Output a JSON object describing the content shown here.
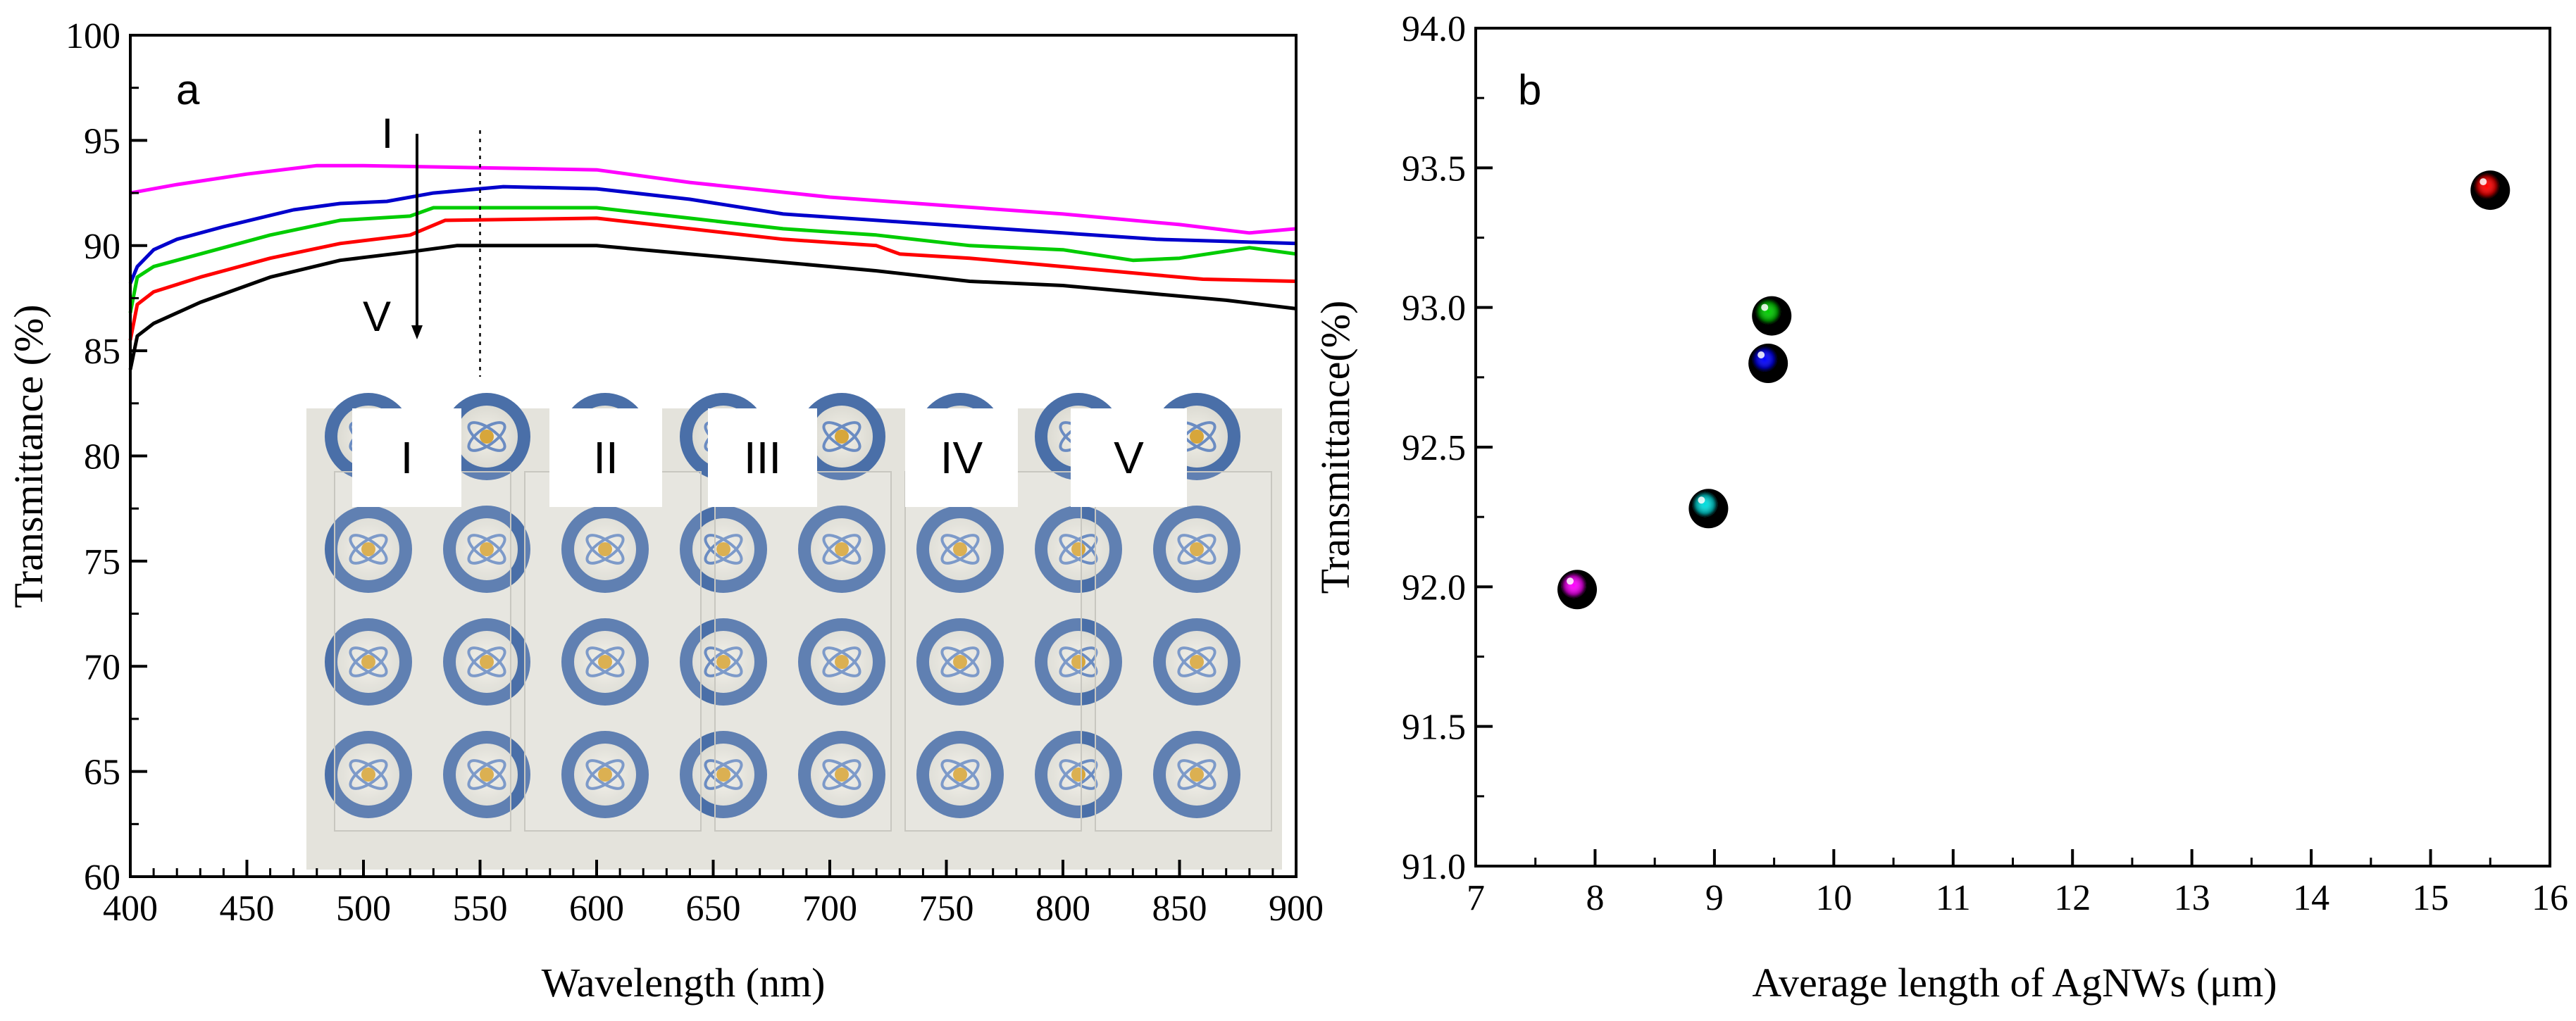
{
  "chart_data": [
    {
      "type": "line",
      "panel_label": "a",
      "xlabel": "Wavelength (nm)",
      "ylabel": "Transmittance (%)",
      "xlim": [
        400,
        900
      ],
      "ylim": [
        60,
        100
      ],
      "xticks": [
        "400",
        "450",
        "500",
        "550",
        "600",
        "650",
        "700",
        "750",
        "800",
        "850",
        "900"
      ],
      "yticks": [
        "60",
        "65",
        "70",
        "75",
        "80",
        "85",
        "90",
        "95",
        "100"
      ],
      "annotations": {
        "top": "I",
        "bottom": "V",
        "marker_wavelength": 550
      },
      "series": [
        {
          "name": "I",
          "color": "#ff00ff",
          "x": [
            400,
            420,
            450,
            480,
            500,
            550,
            600,
            640,
            700,
            750,
            800,
            850,
            880,
            900
          ],
          "values": [
            92.5,
            92.9,
            93.4,
            93.8,
            93.8,
            93.7,
            93.6,
            93.0,
            92.3,
            91.9,
            91.5,
            91.0,
            90.6,
            90.8
          ]
        },
        {
          "name": "II",
          "color": "#0000cc",
          "x": [
            400,
            403,
            410,
            420,
            440,
            470,
            490,
            510,
            530,
            560,
            600,
            640,
            680,
            720,
            760,
            800,
            840,
            870,
            900
          ],
          "values": [
            88.2,
            89.0,
            89.8,
            90.3,
            90.9,
            91.7,
            92.0,
            92.1,
            92.5,
            92.8,
            92.7,
            92.2,
            91.5,
            91.2,
            90.9,
            90.6,
            90.3,
            90.2,
            90.1
          ]
        },
        {
          "name": "III",
          "color": "#00cc00",
          "x": [
            400,
            403,
            410,
            430,
            460,
            490,
            520,
            530,
            600,
            640,
            680,
            720,
            760,
            800,
            830,
            850,
            880,
            900
          ],
          "values": [
            86.8,
            88.5,
            89.0,
            89.6,
            90.5,
            91.2,
            91.4,
            91.8,
            91.8,
            91.3,
            90.8,
            90.5,
            90.0,
            89.8,
            89.3,
            89.4,
            89.9,
            89.6
          ]
        },
        {
          "name": "IV",
          "color": "#ff0000",
          "x": [
            400,
            403,
            410,
            430,
            460,
            490,
            520,
            535,
            600,
            640,
            680,
            720,
            730,
            760,
            800,
            840,
            860,
            900
          ],
          "values": [
            85.5,
            87.2,
            87.8,
            88.5,
            89.4,
            90.1,
            90.5,
            91.2,
            91.3,
            90.8,
            90.3,
            90.0,
            89.6,
            89.4,
            89.0,
            88.6,
            88.4,
            88.3
          ]
        },
        {
          "name": "V",
          "color": "#000000",
          "x": [
            400,
            403,
            410,
            430,
            460,
            490,
            520,
            540,
            600,
            640,
            680,
            720,
            760,
            800,
            840,
            870,
            900
          ],
          "values": [
            84.1,
            85.7,
            86.3,
            87.3,
            88.5,
            89.3,
            89.7,
            90.0,
            90.0,
            89.6,
            89.2,
            88.8,
            88.3,
            88.1,
            87.7,
            87.4,
            87.0
          ]
        }
      ],
      "inset": {
        "type": "image",
        "description_labels": [
          "I",
          "II",
          "III",
          "IV",
          "V"
        ]
      }
    },
    {
      "type": "scatter",
      "panel_label": "b",
      "xlabel": "Average length of AgNWs (μm)",
      "ylabel": "Transmittance(%)",
      "xlim": [
        7,
        16
      ],
      "ylim": [
        91.0,
        94.0
      ],
      "xticks": [
        "7",
        "8",
        "9",
        "10",
        "11",
        "12",
        "13",
        "14",
        "15",
        "16"
      ],
      "yticks": [
        "91.0",
        "91.5",
        "92.0",
        "92.5",
        "93.0",
        "93.5",
        "94.0"
      ],
      "points": [
        {
          "x": 7.85,
          "y": 91.99,
          "color": "#ff00ff"
        },
        {
          "x": 8.95,
          "y": 92.28,
          "color": "#00dddd"
        },
        {
          "x": 9.45,
          "y": 92.8,
          "color": "#0000ff"
        },
        {
          "x": 9.48,
          "y": 92.97,
          "color": "#00cc00"
        },
        {
          "x": 15.5,
          "y": 93.42,
          "color": "#ff0000"
        }
      ]
    }
  ]
}
